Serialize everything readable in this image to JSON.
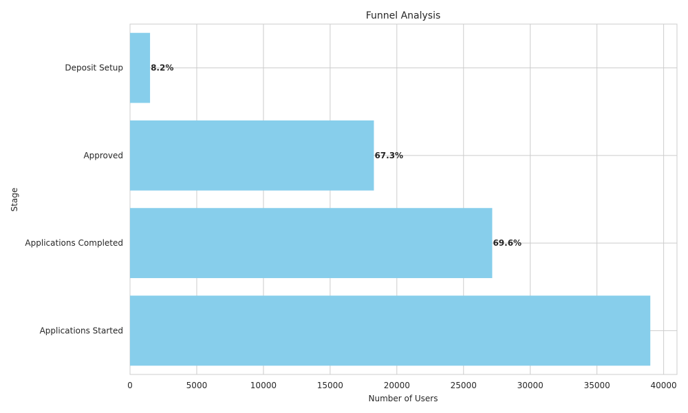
{
  "chart_data": {
    "type": "bar",
    "orientation": "horizontal",
    "title": "Funnel Analysis",
    "xlabel": "Number of Users",
    "ylabel": "Stage",
    "categories": [
      "Applications Started",
      "Applications Completed",
      "Approved",
      "Deposit Setup"
    ],
    "values": [
      39000,
      27150,
      18280,
      1500
    ],
    "data_labels": [
      "",
      "69.6%",
      "67.3%",
      "8.2%"
    ],
    "xlim": [
      0,
      41000
    ],
    "xticks": [
      0,
      5000,
      10000,
      15000,
      20000,
      25000,
      30000,
      35000,
      40000
    ],
    "grid": true,
    "bar_color": "#87ceeb"
  }
}
